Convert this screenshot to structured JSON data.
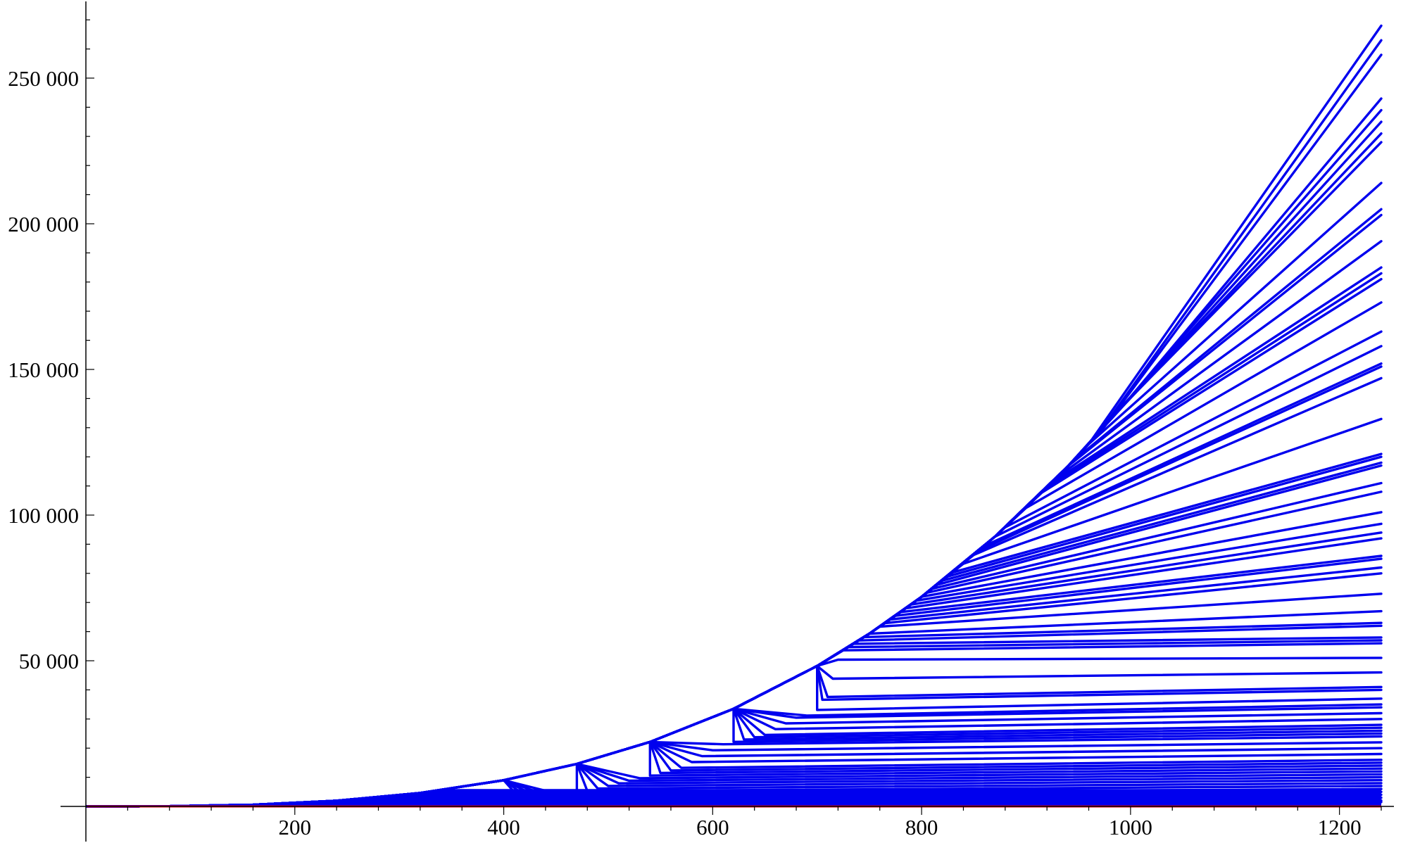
{
  "colors": {
    "series": "#0000ee",
    "baseline": "#e8001c",
    "axis": "#000000"
  },
  "chart_data": {
    "type": "line",
    "title": "",
    "xlabel": "",
    "ylabel": "",
    "grid": false,
    "legend": "none",
    "xlim": [
      0,
      1250
    ],
    "ylim": [
      -3000,
      275000
    ],
    "x_ticks": [
      {
        "value": 200,
        "label": "200"
      },
      {
        "value": 400,
        "label": "400"
      },
      {
        "value": 600,
        "label": "600"
      },
      {
        "value": 800,
        "label": "800"
      },
      {
        "value": 1000,
        "label": "1000"
      },
      {
        "value": 1200,
        "label": "1200"
      }
    ],
    "y_ticks": [
      {
        "value": 50000,
        "label": "50 000"
      },
      {
        "value": 100000,
        "label": "100 000"
      },
      {
        "value": 150000,
        "label": "150 000"
      },
      {
        "value": 200000,
        "label": "200 000"
      },
      {
        "value": 250000,
        "label": "250 000"
      }
    ],
    "x": [
      1,
      80,
      160,
      240,
      320,
      400,
      470,
      540,
      620,
      700,
      750,
      800,
      870,
      940,
      1000,
      1070,
      1240
    ],
    "curve_exponent": 3.0,
    "envelope_final": 268000,
    "branch_final_values": [
      268000,
      263000,
      258000,
      243000,
      239000,
      235000,
      231000,
      228000,
      214000,
      205000,
      203000,
      194000,
      185000,
      183000,
      181000,
      173000,
      163000,
      158000,
      152000,
      151000,
      147000,
      133000,
      121000,
      120000,
      118000,
      117000,
      111000,
      108000,
      101000,
      97000,
      94000,
      92000,
      86000,
      85000,
      82000,
      80000,
      73000,
      67000,
      63000,
      62000,
      58000,
      57000,
      56000,
      51000,
      46000,
      41000,
      40000,
      37000,
      35000,
      34000,
      32000,
      30000,
      28000,
      27000,
      26000,
      25000,
      24000,
      22000,
      20000,
      18000,
      16000,
      15000,
      14000,
      13000,
      12000,
      11000,
      10000,
      9000,
      8000,
      7000,
      6000,
      5000,
      4000,
      3000,
      2000,
      1500
    ],
    "branch_start_x": [
      960,
      970,
      975,
      1000,
      1005,
      985,
      990,
      995,
      960,
      945,
      940,
      930,
      925,
      920,
      915,
      900,
      880,
      870,
      860,
      855,
      850,
      840,
      830,
      825,
      820,
      815,
      810,
      805,
      800,
      795,
      790,
      785,
      780,
      775,
      770,
      765,
      760,
      750,
      745,
      740,
      735,
      730,
      725,
      720,
      715,
      710,
      705,
      700,
      690,
      680,
      670,
      660,
      650,
      640,
      630,
      620,
      610,
      600,
      590,
      580,
      570,
      560,
      550,
      540,
      530,
      520,
      510,
      500,
      490,
      480,
      470,
      460,
      450,
      440,
      430,
      420
    ],
    "baseline": {
      "name": "",
      "values_at_x": [
        1,
        1240
      ],
      "y": [
        0,
        0
      ]
    }
  }
}
